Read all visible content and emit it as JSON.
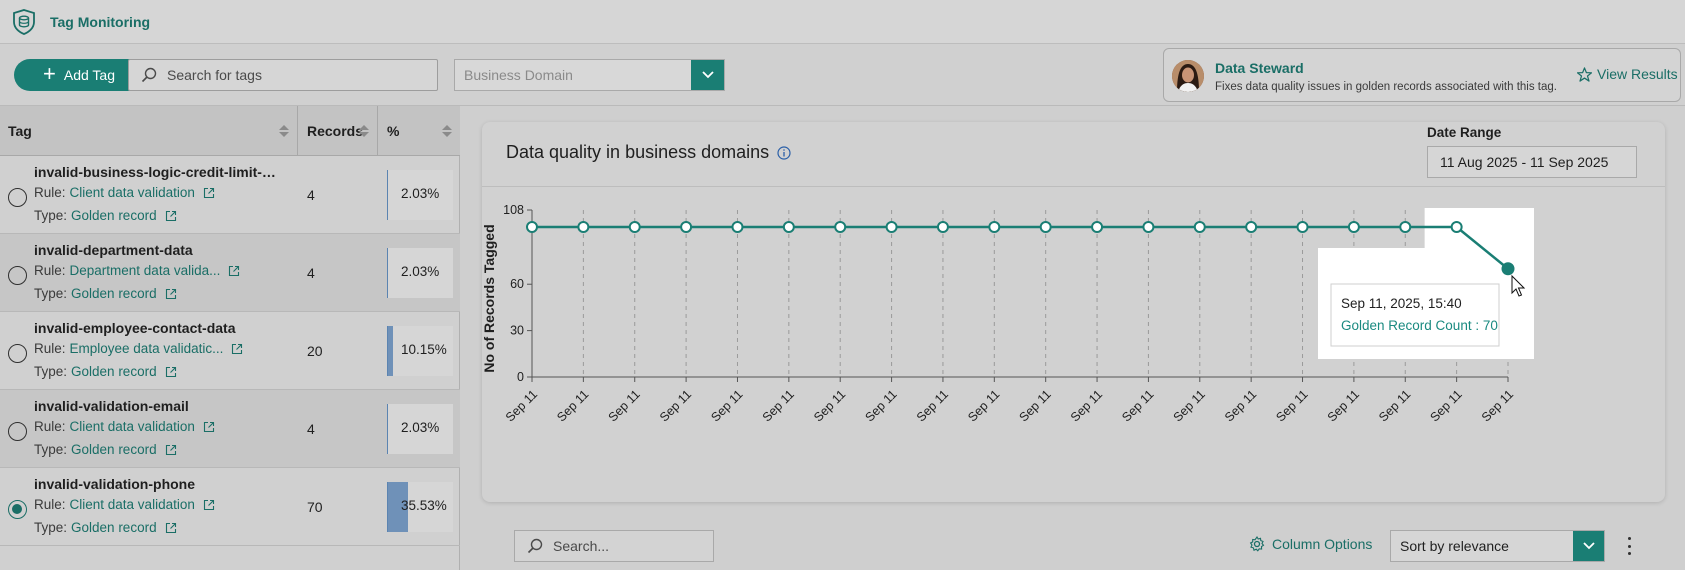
{
  "app": {
    "title": "Tag Monitoring",
    "logo_icon": "shield-database-icon"
  },
  "toolbar": {
    "add_tag_label": "Add Tag",
    "search_placeholder": "Search for tags",
    "domain_placeholder": "Business Domain"
  },
  "steward": {
    "name": "Data Steward",
    "description": "Fixes data quality issues in golden records associated with this tag.",
    "view_results_label": "View Results"
  },
  "table": {
    "headers": {
      "tag": "Tag",
      "records": "Records",
      "percent": "%"
    },
    "rule_prefix": "Rule:",
    "type_prefix": "Type:",
    "rows": [
      {
        "name": "invalid-business-logic-credit-limit-mis...",
        "rule": "Client data validation",
        "type": "Golden record",
        "records": "4",
        "percent": "2.03%",
        "fraction": 0.0203,
        "selected": false
      },
      {
        "name": "invalid-department-data",
        "rule": "Department data valida...",
        "type": "Golden record",
        "records": "4",
        "percent": "2.03%",
        "fraction": 0.0203,
        "selected": false
      },
      {
        "name": "invalid-employee-contact-data",
        "rule": "Employee data validatic...",
        "type": "Golden record",
        "records": "20",
        "percent": "10.15%",
        "fraction": 0.1015,
        "selected": false
      },
      {
        "name": "invalid-validation-email",
        "rule": "Client data validation",
        "type": "Golden record",
        "records": "4",
        "percent": "2.03%",
        "fraction": 0.0203,
        "selected": false
      },
      {
        "name": "invalid-validation-phone",
        "rule": "Client data validation",
        "type": "Golden record",
        "records": "70",
        "percent": "35.53%",
        "fraction": 0.3553,
        "selected": true
      }
    ]
  },
  "panel": {
    "title": "Data quality in business domains",
    "date_range_label": "Date Range",
    "date_range_value": "11 Aug 2025 - 11 Sep 2025"
  },
  "chart_data": {
    "type": "line",
    "ylabel": "No of Records Tagged",
    "ylim": [
      0,
      108
    ],
    "yticks": [
      0,
      30,
      60,
      108
    ],
    "grid": "vertical dashed",
    "series_color": "#1a7e74",
    "x": [
      "Sep 11",
      "Sep 11",
      "Sep 11",
      "Sep 11",
      "Sep 11",
      "Sep 11",
      "Sep 11",
      "Sep 11",
      "Sep 11",
      "Sep 11",
      "Sep 11",
      "Sep 11",
      "Sep 11",
      "Sep 11",
      "Sep 11",
      "Sep 11",
      "Sep 11",
      "Sep 11",
      "Sep 11",
      "Sep 11"
    ],
    "series": [
      {
        "values": [
          97,
          97,
          97,
          97,
          97,
          97,
          97,
          97,
          97,
          97,
          97,
          97,
          97,
          97,
          97,
          97,
          97,
          97,
          97,
          70
        ]
      }
    ],
    "tooltip": {
      "title": "Sep 11, 2025, 15:40",
      "text": "Golden Record Count : 70"
    }
  },
  "bottom": {
    "search_placeholder": "Search...",
    "column_options_label": "Column Options",
    "sort_value": "Sort by relevance"
  }
}
